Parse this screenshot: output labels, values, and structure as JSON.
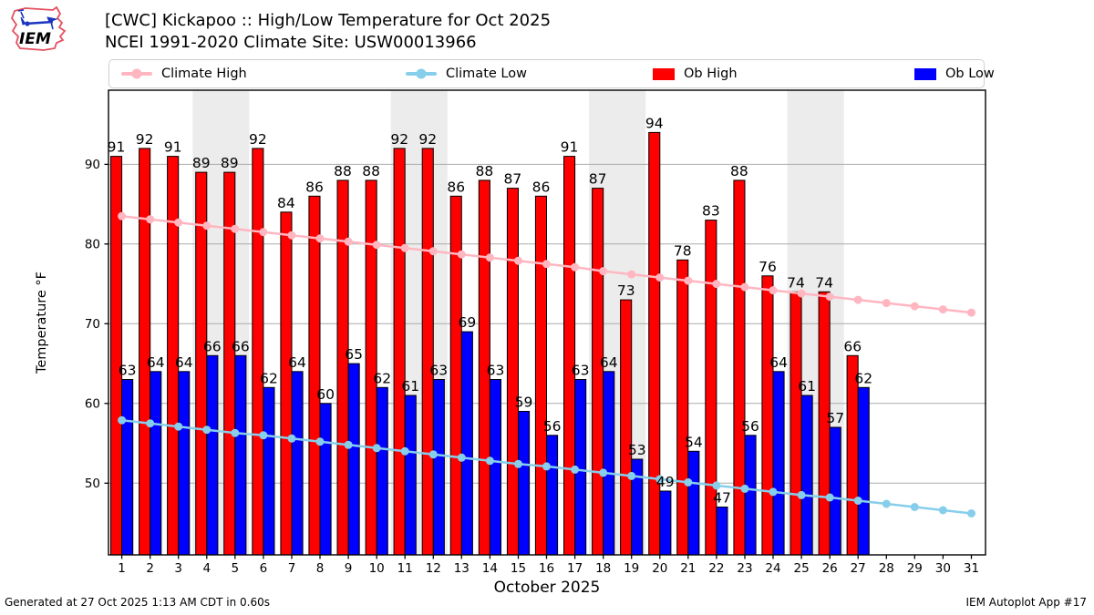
{
  "header": {
    "logo_text": "IEM",
    "title_line1": "[CWC] Kickapoo :: High/Low Temperature for Oct 2025",
    "title_line2": "NCEI 1991-2020 Climate Site: USW00013966"
  },
  "legend": {
    "items": [
      {
        "label": "Climate High",
        "swatch": "line",
        "color": "#ffb6c1"
      },
      {
        "label": "Climate Low",
        "swatch": "line",
        "color": "#87ceeb"
      },
      {
        "label": "Ob High",
        "swatch": "rect",
        "color": "#ff0000"
      },
      {
        "label": "Ob Low",
        "swatch": "rect",
        "color": "#0000ff"
      }
    ]
  },
  "footer": {
    "left": "Generated at 27 Oct 2025 1:13 AM CDT in 0.60s",
    "right": "IEM Autoplot App #17"
  },
  "chart_data": {
    "type": "bar",
    "title": "[CWC] Kickapoo :: High/Low Temperature for Oct 2025",
    "subtitle": "NCEI 1991-2020 Climate Site: USW00013966",
    "xlabel": "October 2025",
    "ylabel": "Temperature °F",
    "xlim": [
      0.53,
      31.5
    ],
    "ylim": [
      41.0,
      99.3
    ],
    "yticks": [
      50,
      60,
      70,
      80,
      90
    ],
    "grid": true,
    "legend_position": "top",
    "days": [
      1,
      2,
      3,
      4,
      5,
      6,
      7,
      8,
      9,
      10,
      11,
      12,
      13,
      14,
      15,
      16,
      17,
      18,
      19,
      20,
      21,
      22,
      23,
      24,
      25,
      26,
      27,
      28,
      29,
      30,
      31
    ],
    "weekend_bands": [
      [
        3.5,
        5.5
      ],
      [
        10.5,
        12.5
      ],
      [
        17.5,
        19.5
      ],
      [
        24.5,
        26.5
      ]
    ],
    "series": [
      {
        "name": "Ob High",
        "type": "bar",
        "color": "#ff0000",
        "values": [
          91,
          92,
          91,
          89,
          89,
          92,
          84,
          86,
          88,
          88,
          92,
          92,
          86,
          88,
          87,
          86,
          91,
          87,
          73,
          94,
          78,
          83,
          88,
          76,
          74,
          74,
          66,
          null,
          null,
          null,
          null
        ]
      },
      {
        "name": "Ob Low",
        "type": "bar",
        "color": "#0000ff",
        "values": [
          63,
          64,
          64,
          66,
          66,
          62,
          64,
          60,
          65,
          62,
          61,
          63,
          69,
          63,
          59,
          56,
          63,
          64,
          53,
          49,
          54,
          47,
          56,
          64,
          61,
          57,
          62,
          null,
          null,
          null,
          null
        ]
      },
      {
        "name": "Climate High",
        "type": "line",
        "color": "#ffb6c1",
        "values": [
          83.5,
          83.1,
          82.7,
          82.3,
          81.9,
          81.5,
          81.1,
          80.7,
          80.3,
          79.9,
          79.5,
          79.1,
          78.7,
          78.3,
          77.9,
          77.5,
          77.1,
          76.6,
          76.2,
          75.8,
          75.4,
          75.0,
          74.6,
          74.2,
          73.8,
          73.4,
          73.0,
          72.6,
          72.2,
          71.8,
          71.4
        ]
      },
      {
        "name": "Climate Low",
        "type": "line",
        "color": "#87ceeb",
        "values": [
          57.9,
          57.5,
          57.1,
          56.7,
          56.3,
          56.0,
          55.6,
          55.2,
          54.8,
          54.4,
          54.0,
          53.6,
          53.2,
          52.8,
          52.4,
          52.1,
          51.7,
          51.3,
          50.9,
          50.5,
          50.1,
          49.7,
          49.3,
          48.9,
          48.5,
          48.2,
          47.8,
          47.4,
          47.0,
          46.6,
          46.2
        ]
      }
    ],
    "colors": {
      "grid": "#ababab",
      "weekend_band": "#ececec",
      "spine": "#000000",
      "bar_edge": "#000000",
      "label": "#000000"
    }
  }
}
